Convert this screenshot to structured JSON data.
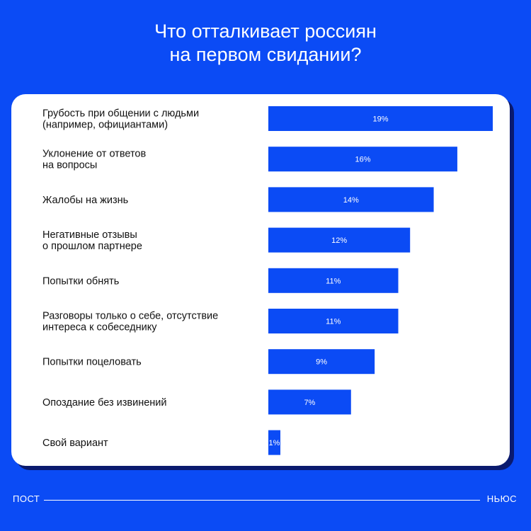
{
  "title": "Что отталкивает россиян\nна первом свидании?",
  "footer": {
    "left": "ПОСТ",
    "right": "НЬЮС"
  },
  "colors": {
    "background": "#0b4bf5",
    "bar": "#0b4bf5",
    "bar_label": "#ffffff",
    "card": "#ffffff",
    "text": "#111111"
  },
  "chart_data": {
    "type": "bar",
    "orientation": "horizontal",
    "categories": [
      "Грубость при общении с людьми\n(например, официантами)",
      "Уклонение от ответов\nна вопросы",
      "Жалобы на жизнь",
      "Негативные отзывы\nо прошлом партнере",
      "Попытки обнять",
      "Разговоры только о себе, отсутствие\nинтереса к собеседнику",
      "Попытки поцеловать",
      "Опоздание без извинений",
      "Свой вариант"
    ],
    "values": [
      19,
      16,
      14,
      12,
      11,
      11,
      9,
      7,
      1
    ],
    "value_labels": [
      "19%",
      "16%",
      "14%",
      "12%",
      "11%",
      "11%",
      "9%",
      "7%",
      "1%"
    ],
    "xlim": [
      0,
      19
    ],
    "grid": false,
    "legend": "none"
  }
}
